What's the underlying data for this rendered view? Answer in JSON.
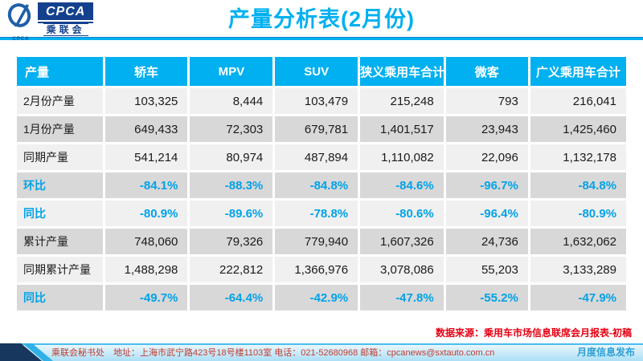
{
  "header": {
    "title": "产量分析表(2月份)",
    "logo": {
      "acronym": "CPCA",
      "org_cn": "乘联会",
      "mini": "CPCA"
    }
  },
  "table": {
    "columns": [
      "产量",
      "轿车",
      "MPV",
      "SUV",
      "狭义乘用车合计",
      "微客",
      "广义乘用车合计"
    ],
    "rows": [
      {
        "label": "2月份产量",
        "type": "number",
        "values": [
          "103,325",
          "8,444",
          "103,479",
          "215,248",
          "793",
          "216,041"
        ]
      },
      {
        "label": "1月份产量",
        "type": "number",
        "values": [
          "649,433",
          "72,303",
          "679,781",
          "1,401,517",
          "23,943",
          "1,425,460"
        ]
      },
      {
        "label": "同期产量",
        "type": "number",
        "values": [
          "541,214",
          "80,974",
          "487,894",
          "1,110,082",
          "22,096",
          "1,132,178"
        ]
      },
      {
        "label": "环比",
        "type": "percent",
        "values": [
          "-84.1%",
          "-88.3%",
          "-84.8%",
          "-84.6%",
          "-96.7%",
          "-84.8%"
        ]
      },
      {
        "label": "同比",
        "type": "percent",
        "values": [
          "-80.9%",
          "-89.6%",
          "-78.8%",
          "-80.6%",
          "-96.4%",
          "-80.9%"
        ]
      },
      {
        "label": "累计产量",
        "type": "number",
        "values": [
          "748,060",
          "79,326",
          "779,940",
          "1,607,326",
          "24,736",
          "1,632,062"
        ]
      },
      {
        "label": "同期累计产量",
        "type": "number",
        "values": [
          "1,488,298",
          "222,812",
          "1,366,976",
          "3,078,086",
          "55,203",
          "3,133,289"
        ]
      },
      {
        "label": "同比",
        "type": "percent",
        "values": [
          "-49.7%",
          "-64.4%",
          "-42.9%",
          "-47.8%",
          "-55.2%",
          "-47.9%"
        ]
      }
    ]
  },
  "source_note": "数据来源：乘用车市场信息联席会月报表-初稿",
  "footer": {
    "left": "乘联会秘书处　地址：上海市武宁路423号18号楼1103室 电话：021-52680968 邮箱：cpcanews@sxtauto.com.cn",
    "right": "月度信息发布"
  },
  "colors": {
    "accent_cyan": "#00b0f0",
    "percent_text": "#00a2e8",
    "source_red": "#e60012",
    "footer_red": "#c23b30",
    "footer_blue": "#2e9fd4",
    "logo_navy": "#14418e",
    "row_light": "#f0f0f0",
    "row_dark": "#d8d8d8"
  }
}
